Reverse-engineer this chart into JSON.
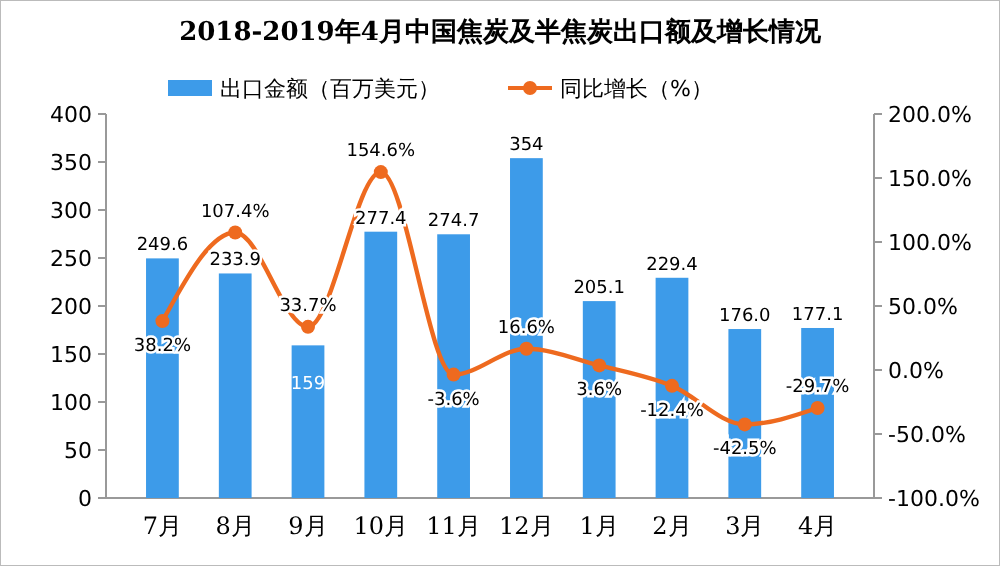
{
  "chart_data": {
    "type": "bar",
    "title": "2018-2019年4月中国焦炭及半焦炭出口额及增长情况",
    "categories": [
      "7月",
      "8月",
      "9月",
      "10月",
      "11月",
      "12月",
      "1月",
      "2月",
      "3月",
      "4月"
    ],
    "series": [
      {
        "name": "出口金额（百万美元）",
        "color": "#3d9be9",
        "values": [
          249.6,
          233.9,
          159,
          277.4,
          274.7,
          354,
          205.1,
          229.4,
          176.0,
          177.1
        ],
        "value_labels": [
          "249.6",
          "233.9",
          "159",
          "277.4",
          "274.7",
          "354",
          "205.1",
          "229.4",
          "176.0",
          "177.1"
        ]
      },
      {
        "name": "同比增长（%）",
        "type": "line",
        "axis": "y2",
        "color": "#ee6a1f",
        "values": [
          38.2,
          107.4,
          33.7,
          154.6,
          -3.6,
          16.6,
          3.6,
          -12.4,
          -42.5,
          -29.7
        ],
        "value_labels": [
          "38.2%",
          "107.4%",
          "33.7%",
          "154.6%",
          "-3.6%",
          "16.6%",
          "3.6%",
          "-12.4%",
          "-42.5%",
          "-29.7%"
        ]
      }
    ],
    "ylim": [
      0,
      400
    ],
    "yticks": [
      0,
      50,
      100,
      150,
      200,
      250,
      300,
      350,
      400
    ],
    "y2lim": [
      -100,
      200
    ],
    "y2ticks": [
      {
        "value": -100,
        "label": "-100.0%"
      },
      {
        "value": -50,
        "label": "-50.0%"
      },
      {
        "value": 0,
        "label": "0.0%"
      },
      {
        "value": 50,
        "label": "50.0%"
      },
      {
        "value": 100,
        "label": "100.0%"
      },
      {
        "value": 150,
        "label": "150.0%"
      },
      {
        "value": 200,
        "label": "200.0%"
      }
    ],
    "legend": "top",
    "marker": "circle",
    "grid": false
  }
}
